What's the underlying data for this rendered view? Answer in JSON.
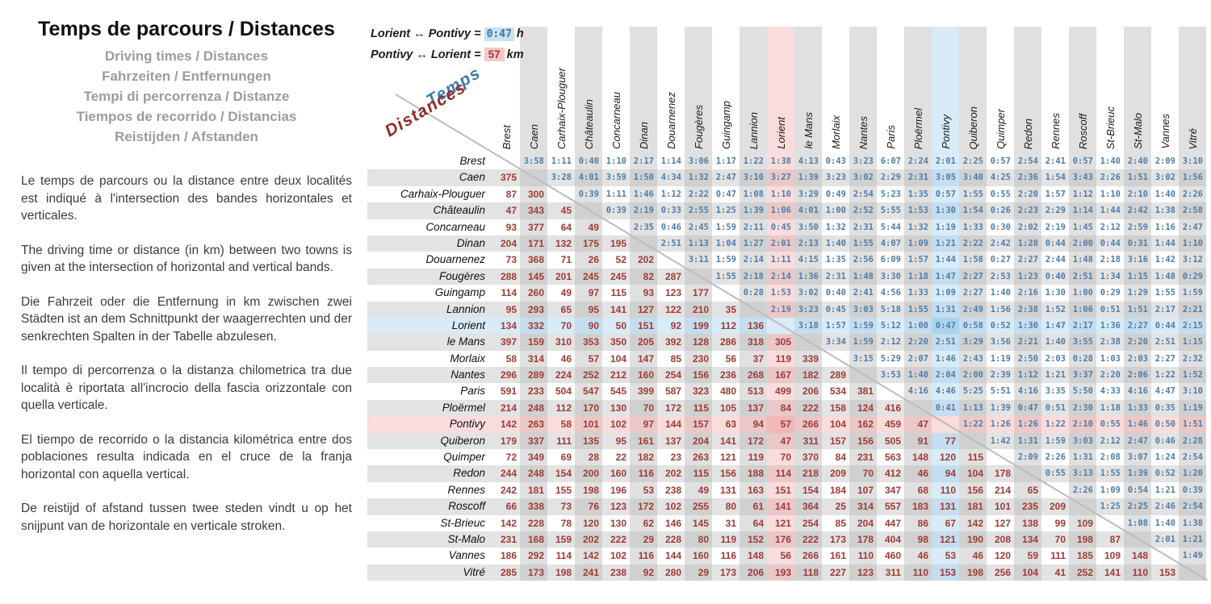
{
  "panel": {
    "title": "Temps de parcours / Distances",
    "subtitles": [
      "Driving times / Distances",
      "Fahrzeiten / Entfernungen",
      "Tempi di percorrenza / Distanze",
      "Tiempos de recorrido / Distancias",
      "Reistijden / Afstanden"
    ],
    "paragraphs": [
      "Le temps de parcours ou la distance entre deux localités est indiqué à l'intersection des bandes horizontales et verticales.",
      "The driving time or distance (in km) between two towns is given at the intersection of horizontal and vertical bands.",
      "Die Fahrzeit oder die Entfernung in km zwischen zwei Städten ist an dem Schnittpunkt der waagerrechten und der senkrechten Spalten in der Tabelle abzulesen.",
      "Il tempo di percorrenza o la distanza chilometrica tra due località è riportata all'incrocio della fascia orizzontale con quella verticale.",
      "El tiempo de recorrido o la distancia kilométrica entre dos poblaciones resulta indicada en el cruce de la franja horizontal con aquella vertical.",
      "De reistijd of afstand tussen twee steden vindt u op het snijpunt van de horizontale en verticale stroken."
    ]
  },
  "legend": {
    "time": {
      "label": "Lorient ↔ Pontivy =",
      "value": "0:47",
      "unit": "h"
    },
    "dist": {
      "label": "Pontivy ↔ Lorient =",
      "value": "57",
      "unit": "km"
    }
  },
  "axis_labels": {
    "times": "Temps",
    "distances": "Distances"
  },
  "highlights": {
    "time_row": "Lorient",
    "dist_row": "Pontivy",
    "time_text_color": "#4e7da7",
    "dist_text_color": "#9e3b35",
    "blue_bg": "#d8ebf7",
    "pink_bg": "#f9dcdc",
    "blue_cell": "#aad3ed",
    "pink_cell": "#f0b8b8"
  },
  "chart_data": {
    "type": "table",
    "title": "Temps de parcours / Distances",
    "upper_triangle": "driving times h:mm",
    "lower_triangle": "distances km",
    "towns": [
      "Brest",
      "Caen",
      "Carhaix-Plouguer",
      "Châteaulin",
      "Concarneau",
      "Dinan",
      "Douarnenez",
      "Fougères",
      "Guingamp",
      "Lannion",
      "Lorient",
      "le Mans",
      "Morlaix",
      "Nantes",
      "Paris",
      "Ploërmel",
      "Pontivy",
      "Quiberon",
      "Quimper",
      "Redon",
      "Rennes",
      "Roscoff",
      "St-Brieuc",
      "St-Malo",
      "Vannes",
      "Vitré"
    ],
    "matrix": [
      [
        "",
        "3:58",
        "1:11",
        "0:40",
        "1:10",
        "2:17",
        "1:14",
        "3:06",
        "1:17",
        "1:22",
        "1:38",
        "4:13",
        "0:43",
        "3:23",
        "6:07",
        "2:24",
        "2:01",
        "2:25",
        "0:57",
        "2:54",
        "2:41",
        "0:57",
        "1:40",
        "2:40",
        "2:09",
        "3:10"
      ],
      [
        "375",
        "",
        "3:28",
        "4:01",
        "3:59",
        "1:50",
        "4:34",
        "1:32",
        "2:47",
        "3:10",
        "3:27",
        "1:39",
        "3:23",
        "3:02",
        "2:29",
        "2:31",
        "3:05",
        "3:40",
        "4:25",
        "2:36",
        "1:54",
        "3:43",
        "2:26",
        "1:51",
        "3:02",
        "1:56"
      ],
      [
        "87",
        "300",
        "",
        "0:39",
        "1:11",
        "1:46",
        "1:12",
        "2:22",
        "0:47",
        "1:08",
        "1:10",
        "3:29",
        "0:49",
        "2:54",
        "5:23",
        "1:35",
        "0:57",
        "1:55",
        "0:55",
        "2:20",
        "1:57",
        "1:12",
        "1:10",
        "2:10",
        "1:40",
        "2:26"
      ],
      [
        "47",
        "343",
        "45",
        "",
        "0:39",
        "2:19",
        "0:33",
        "2:55",
        "1:25",
        "1:39",
        "1:06",
        "4:01",
        "1:00",
        "2:52",
        "5:55",
        "1:53",
        "1:30",
        "1:54",
        "0:26",
        "2:23",
        "2:29",
        "1:14",
        "1:44",
        "2:42",
        "1:38",
        "2:58"
      ],
      [
        "93",
        "377",
        "64",
        "49",
        "",
        "2:35",
        "0:46",
        "2:45",
        "1:59",
        "2:11",
        "0:45",
        "3:50",
        "1:32",
        "2:31",
        "5:44",
        "1:32",
        "1:19",
        "1:33",
        "0:30",
        "2:02",
        "2:19",
        "1:45",
        "2:12",
        "2:59",
        "1:16",
        "2:47"
      ],
      [
        "204",
        "171",
        "132",
        "175",
        "195",
        "",
        "2:51",
        "1:13",
        "1:04",
        "1:27",
        "2:01",
        "2:13",
        "1:40",
        "1:55",
        "4:07",
        "1:09",
        "1:21",
        "2:22",
        "2:42",
        "1:28",
        "0:44",
        "2:00",
        "0:44",
        "0:31",
        "1:44",
        "1:10"
      ],
      [
        "73",
        "368",
        "71",
        "26",
        "52",
        "202",
        "",
        "3:11",
        "1:59",
        "2:14",
        "1:11",
        "4:15",
        "1:35",
        "2:56",
        "6:09",
        "1:57",
        "1:44",
        "1:58",
        "0:27",
        "2:27",
        "2:44",
        "1:48",
        "2:18",
        "3:16",
        "1:42",
        "3:12"
      ],
      [
        "288",
        "145",
        "201",
        "245",
        "245",
        "82",
        "287",
        "",
        "1:55",
        "2:18",
        "2:14",
        "1:36",
        "2:31",
        "1:48",
        "3:30",
        "1:18",
        "1:47",
        "2:27",
        "2:53",
        "1:23",
        "0:40",
        "2:51",
        "1:34",
        "1:15",
        "1:48",
        "0:29"
      ],
      [
        "114",
        "260",
        "49",
        "97",
        "115",
        "93",
        "123",
        "177",
        "",
        "0:28",
        "1:53",
        "3:02",
        "0:40",
        "2:41",
        "4:56",
        "1:33",
        "1:09",
        "2:27",
        "1:40",
        "2:16",
        "1:30",
        "1:00",
        "0:29",
        "1:29",
        "1:55",
        "1:59"
      ],
      [
        "95",
        "293",
        "65",
        "95",
        "141",
        "127",
        "122",
        "210",
        "35",
        "",
        "2:19",
        "3:23",
        "0:45",
        "3:03",
        "5:18",
        "1:55",
        "1:31",
        "2:49",
        "1:56",
        "2:38",
        "1:52",
        "1:06",
        "0:51",
        "1:51",
        "2:17",
        "2:21"
      ],
      [
        "134",
        "332",
        "70",
        "90",
        "50",
        "151",
        "92",
        "199",
        "112",
        "136",
        "",
        "3:18",
        "1:57",
        "1:59",
        "5:12",
        "1:00",
        "0:47",
        "0:58",
        "0:52",
        "1:30",
        "1:47",
        "2:17",
        "1:36",
        "2:27",
        "0:44",
        "2:15"
      ],
      [
        "397",
        "159",
        "310",
        "353",
        "350",
        "205",
        "392",
        "128",
        "286",
        "318",
        "305",
        "",
        "3:34",
        "1:59",
        "2:12",
        "2:20",
        "2:51",
        "3:29",
        "3:56",
        "2:21",
        "1:40",
        "3:55",
        "2:38",
        "2:20",
        "2:51",
        "1:15"
      ],
      [
        "58",
        "314",
        "46",
        "57",
        "104",
        "147",
        "85",
        "230",
        "56",
        "37",
        "119",
        "339",
        "",
        "3:15",
        "5:29",
        "2:07",
        "1:46",
        "2:43",
        "1:19",
        "2:50",
        "2:03",
        "0:28",
        "1:03",
        "2:03",
        "2:27",
        "2:32"
      ],
      [
        "296",
        "289",
        "224",
        "252",
        "212",
        "160",
        "254",
        "156",
        "236",
        "268",
        "167",
        "182",
        "289",
        "",
        "3:53",
        "1:40",
        "2:04",
        "2:00",
        "2:39",
        "1:12",
        "1:21",
        "3:37",
        "2:20",
        "2:06",
        "1:22",
        "1:52"
      ],
      [
        "591",
        "233",
        "504",
        "547",
        "545",
        "399",
        "587",
        "323",
        "480",
        "513",
        "499",
        "206",
        "534",
        "381",
        "",
        "4:16",
        "4:46",
        "5:25",
        "5:51",
        "4:16",
        "3:35",
        "5:50",
        "4:33",
        "4:16",
        "4:47",
        "3:10"
      ],
      [
        "214",
        "248",
        "112",
        "170",
        "130",
        "70",
        "172",
        "115",
        "105",
        "137",
        "84",
        "222",
        "158",
        "124",
        "416",
        "",
        "0:41",
        "1:13",
        "1:39",
        "0:47",
        "0:51",
        "2:30",
        "1:18",
        "1:33",
        "0:35",
        "1:19"
      ],
      [
        "142",
        "263",
        "58",
        "101",
        "102",
        "97",
        "144",
        "157",
        "63",
        "94",
        "57",
        "266",
        "104",
        "162",
        "459",
        "47",
        "",
        "1:22",
        "1:26",
        "1:26",
        "1:22",
        "2:10",
        "0:55",
        "1:46",
        "0:50",
        "1:51"
      ],
      [
        "179",
        "337",
        "111",
        "135",
        "95",
        "161",
        "137",
        "204",
        "141",
        "172",
        "47",
        "311",
        "157",
        "156",
        "505",
        "91",
        "77",
        "",
        "1:42",
        "1:31",
        "1:59",
        "3:03",
        "2:12",
        "2:47",
        "0:46",
        "2:28"
      ],
      [
        "72",
        "349",
        "69",
        "28",
        "22",
        "182",
        "23",
        "263",
        "121",
        "119",
        "70",
        "370",
        "84",
        "231",
        "563",
        "148",
        "120",
        "115",
        "",
        "2:09",
        "2:26",
        "1:31",
        "2:08",
        "3:07",
        "1:24",
        "2:54"
      ],
      [
        "244",
        "248",
        "154",
        "200",
        "160",
        "116",
        "202",
        "115",
        "156",
        "188",
        "114",
        "218",
        "209",
        "70",
        "412",
        "46",
        "94",
        "104",
        "178",
        "",
        "0:55",
        "3:13",
        "1:55",
        "1:39",
        "0:52",
        "1:20"
      ],
      [
        "242",
        "181",
        "155",
        "198",
        "196",
        "53",
        "238",
        "49",
        "131",
        "163",
        "151",
        "154",
        "184",
        "107",
        "347",
        "68",
        "110",
        "156",
        "214",
        "65",
        "",
        "2:26",
        "1:09",
        "0:54",
        "1:21",
        "0:39"
      ],
      [
        "66",
        "338",
        "73",
        "76",
        "123",
        "172",
        "102",
        "255",
        "80",
        "61",
        "141",
        "364",
        "25",
        "314",
        "557",
        "183",
        "131",
        "181",
        "101",
        "235",
        "209",
        "",
        "1:25",
        "2:25",
        "2:46",
        "2:54"
      ],
      [
        "142",
        "228",
        "78",
        "120",
        "130",
        "62",
        "146",
        "145",
        "31",
        "64",
        "121",
        "254",
        "85",
        "204",
        "447",
        "86",
        "67",
        "142",
        "127",
        "138",
        "99",
        "109",
        "",
        "1:08",
        "1:40",
        "1:38"
      ],
      [
        "231",
        "168",
        "159",
        "202",
        "222",
        "29",
        "228",
        "80",
        "119",
        "152",
        "176",
        "222",
        "173",
        "178",
        "404",
        "98",
        "121",
        "190",
        "208",
        "134",
        "70",
        "198",
        "87",
        "",
        "2:01",
        "1:21"
      ],
      [
        "186",
        "292",
        "114",
        "142",
        "102",
        "116",
        "144",
        "160",
        "116",
        "148",
        "56",
        "266",
        "161",
        "110",
        "460",
        "46",
        "53",
        "46",
        "120",
        "59",
        "111",
        "185",
        "109",
        "148",
        "",
        "1:49"
      ],
      [
        "285",
        "173",
        "198",
        "241",
        "238",
        "92",
        "280",
        "29",
        "173",
        "206",
        "193",
        "118",
        "227",
        "123",
        "311",
        "110",
        "153",
        "198",
        "256",
        "104",
        "41",
        "252",
        "141",
        "110",
        "153",
        ""
      ]
    ]
  }
}
